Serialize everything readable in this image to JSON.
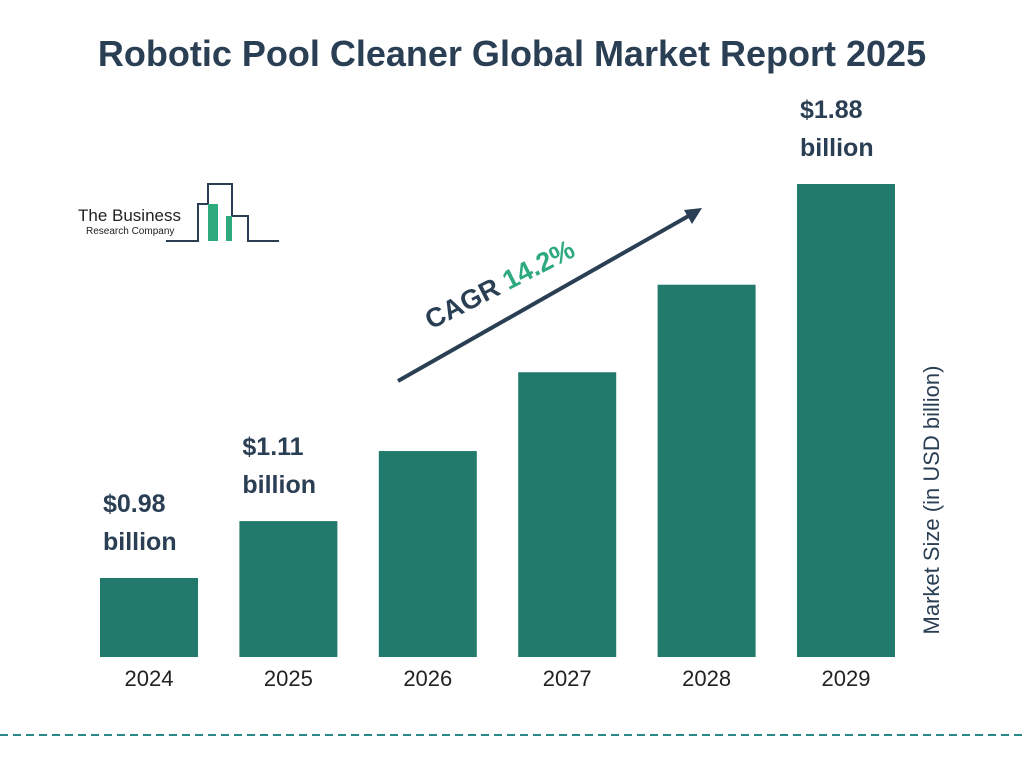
{
  "chart_data": {
    "type": "bar",
    "title": "Robotic Pool Cleaner Global Market Report 2025",
    "categories": [
      "2024",
      "2025",
      "2026",
      "2027",
      "2028",
      "2029"
    ],
    "values": [
      0.98,
      1.11,
      1.27,
      1.45,
      1.65,
      1.88
    ],
    "value_labels": [
      "$0.98 billion",
      "$1.11 billion",
      null,
      null,
      null,
      "$1.88 billion"
    ],
    "color": "#217a6b",
    "y_label": "Market Size (in USD billion)",
    "cagr_label": "CAGR",
    "cagr_value": "14.2%"
  },
  "logo": {
    "name": "The Business",
    "subname": "Research Company"
  }
}
